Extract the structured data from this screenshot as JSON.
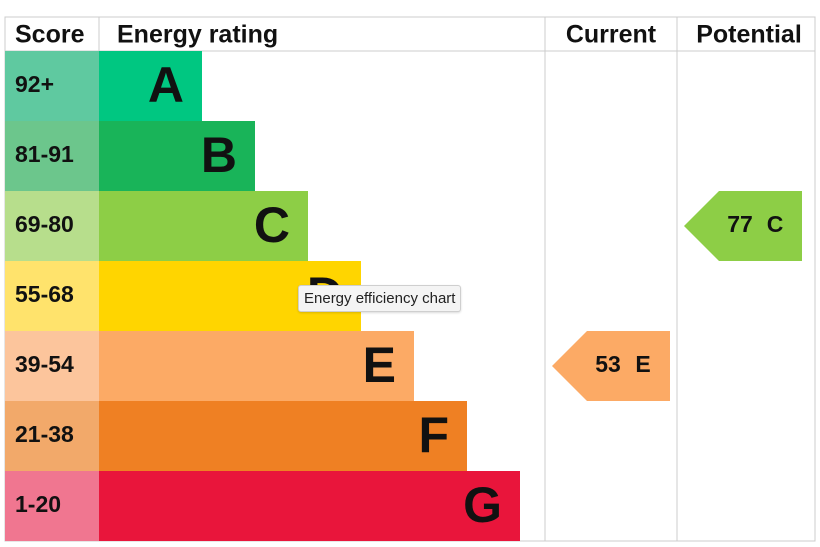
{
  "header": {
    "score": "Score",
    "rating": "Energy rating",
    "current": "Current",
    "potential": "Potential"
  },
  "bands": [
    {
      "score": "92+",
      "letter": "A",
      "color": "#00c781",
      "score_color": "#5fc9a0"
    },
    {
      "score": "81-91",
      "letter": "B",
      "color": "#19b459",
      "score_color": "#6cc68c"
    },
    {
      "score": "69-80",
      "letter": "C",
      "color": "#8dce46",
      "score_color": "#b7de8c"
    },
    {
      "score": "55-68",
      "letter": "D",
      "color": "#ffd500",
      "score_color": "#ffe36c"
    },
    {
      "score": "39-54",
      "letter": "E",
      "color": "#fcaa65",
      "score_color": "#fcc59c"
    },
    {
      "score": "21-38",
      "letter": "F",
      "color": "#ef8023",
      "score_color": "#f2a96a"
    },
    {
      "score": "1-20",
      "letter": "G",
      "color": "#e9153b",
      "score_color": "#f07690"
    }
  ],
  "current": {
    "value": 53,
    "letter": "E"
  },
  "potential": {
    "value": 77,
    "letter": "C"
  },
  "tooltip": "Energy efficiency chart"
}
